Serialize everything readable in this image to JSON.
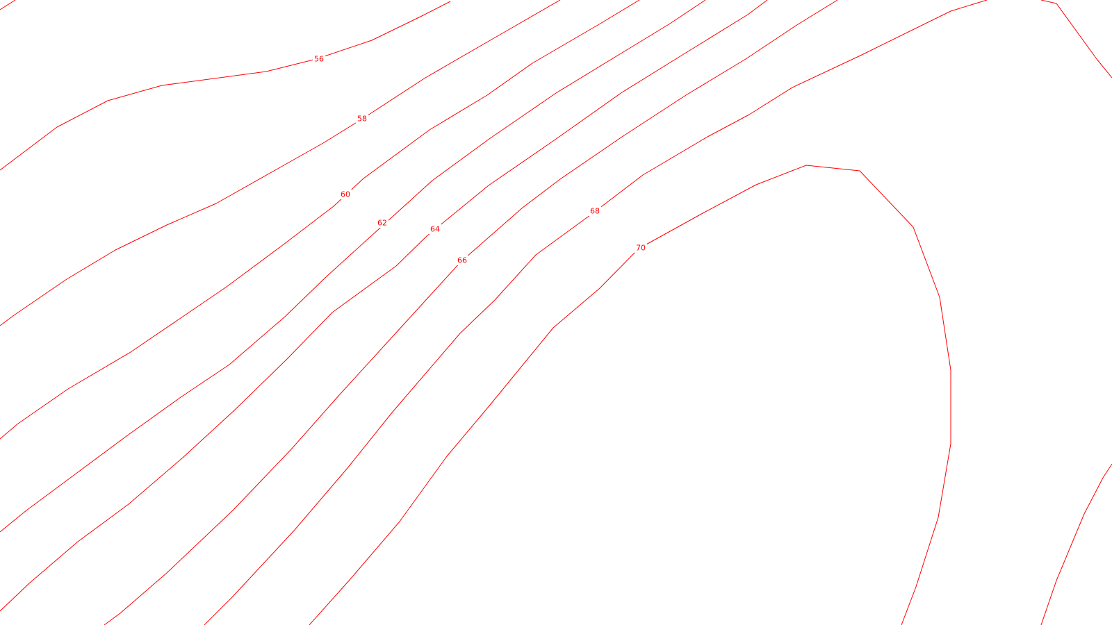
{
  "map": {
    "background_color": "#ffffff",
    "line_color": "#ff0000",
    "contours": [
      {
        "level": "56"
      },
      {
        "level": "58"
      },
      {
        "level": "60"
      },
      {
        "level": "62"
      },
      {
        "level": "64"
      },
      {
        "level": "66"
      },
      {
        "level": "68"
      },
      {
        "level": "70"
      }
    ]
  }
}
